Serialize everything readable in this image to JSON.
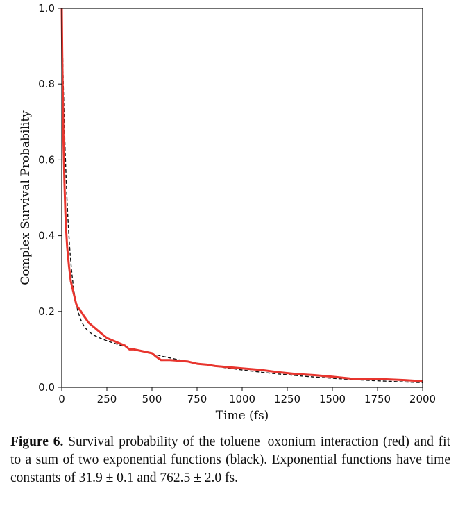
{
  "chart_data": {
    "type": "line",
    "title": "",
    "xlabel": "Time (fs)",
    "ylabel": "Complex Survival Probability",
    "xlim": [
      0,
      2000
    ],
    "ylim": [
      0.0,
      1.0
    ],
    "x_ticks": [
      "0",
      "250",
      "500",
      "750",
      "1000",
      "1250",
      "1500",
      "1750",
      "2000"
    ],
    "y_ticks": [
      "0.0",
      "0.2",
      "0.4",
      "0.6",
      "0.8",
      "1.0"
    ],
    "grid": false,
    "legend": "none",
    "series": [
      {
        "style": "solid",
        "color": "#e8352e",
        "x": [
          0,
          3,
          6,
          10,
          15,
          20,
          25,
          30,
          40,
          50,
          60,
          70,
          80,
          90,
          100,
          120,
          150,
          175,
          200,
          225,
          250,
          275,
          300,
          350,
          375,
          400,
          450,
          500,
          525,
          550,
          600,
          650,
          700,
          750,
          800,
          850,
          900,
          1000,
          1100,
          1200,
          1300,
          1400,
          1500,
          1600,
          1700,
          1800,
          1900,
          2000
        ],
        "y": [
          1.0,
          0.86,
          0.76,
          0.64,
          0.54,
          0.46,
          0.41,
          0.37,
          0.32,
          0.28,
          0.26,
          0.24,
          0.22,
          0.21,
          0.205,
          0.19,
          0.17,
          0.16,
          0.15,
          0.14,
          0.13,
          0.125,
          0.12,
          0.11,
          0.1,
          0.1,
          0.095,
          0.09,
          0.08,
          0.072,
          0.072,
          0.07,
          0.068,
          0.062,
          0.06,
          0.056,
          0.054,
          0.05,
          0.046,
          0.04,
          0.035,
          0.032,
          0.028,
          0.023,
          0.022,
          0.021,
          0.019,
          0.016
        ]
      },
      {
        "style": "dashed",
        "color": "#111111",
        "fit": {
          "tau1": 31.9,
          "tau2": 762.5
        }
      }
    ]
  },
  "caption": {
    "label": "Figure 6.",
    "text": "Survival probability of the toluene−oxonium interaction (red) and fit to a sum of two exponential functions (black). Exponential functions have time constants of 31.9 ± 0.1 and 762.5 ± 2.0 fs."
  }
}
